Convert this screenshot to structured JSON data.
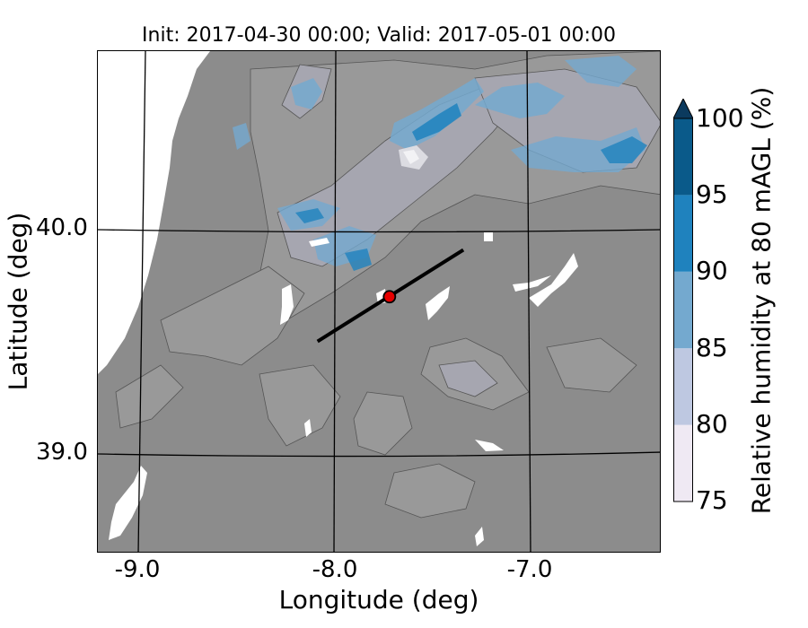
{
  "title": "Init: 2017-04-30 00:00; Valid: 2017-05-01 00:00",
  "axes": {
    "xlabel": "Longitude (deg)",
    "ylabel": "Latitude (deg)",
    "xticks": [
      "-9.0",
      "-8.0",
      "-7.0"
    ],
    "yticks": [
      "40.0",
      "39.0"
    ]
  },
  "colorbar": {
    "label": "Relative humidity at 80 mAGL (%)",
    "ticks": [
      "75",
      "80",
      "85",
      "90",
      "95",
      "100"
    ],
    "colors": [
      "#efe9f3",
      "#bec8e1",
      "#74a9cf",
      "#1f82be",
      "#0a5a8a"
    ],
    "extend_color": "#0b3a5e"
  },
  "chart_data": {
    "type": "heatmap",
    "variable": "Relative humidity at 80 mAGL (%)",
    "levels": [
      75,
      80,
      85,
      90,
      95,
      100
    ],
    "xlim": [
      -9.25,
      -6.35
    ],
    "ylim": [
      38.55,
      40.8
    ],
    "transect": {
      "start": [
        -8.12,
        39.5
      ],
      "end": [
        -7.37,
        39.91
      ]
    },
    "site": {
      "lon": -7.75,
      "lat": 39.7,
      "color": "#e60000"
    }
  },
  "map": {
    "land_color": "#8c8c8c",
    "ocean_color": "#ffffff"
  }
}
